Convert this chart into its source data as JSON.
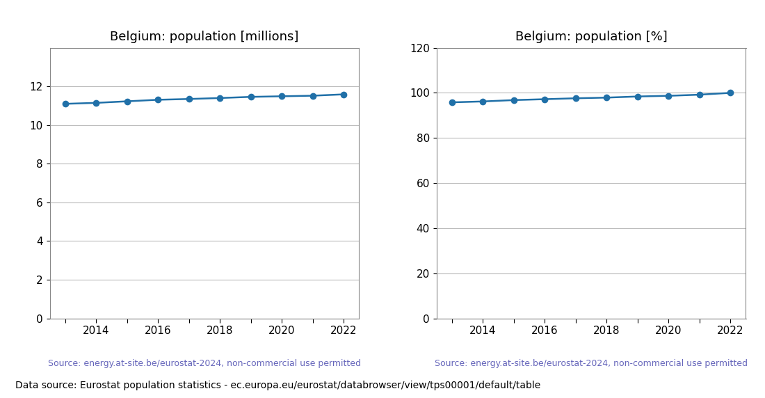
{
  "years": [
    2013,
    2014,
    2015,
    2016,
    2017,
    2018,
    2019,
    2020,
    2021,
    2022
  ],
  "population_millions": [
    11.1,
    11.15,
    11.23,
    11.31,
    11.35,
    11.4,
    11.46,
    11.49,
    11.52,
    11.59
  ],
  "population_pct": [
    95.8,
    96.2,
    96.8,
    97.2,
    97.6,
    97.9,
    98.4,
    98.7,
    99.2,
    100.0
  ],
  "title_millions": "Belgium: population [millions]",
  "title_pct": "Belgium: population [%]",
  "ylim_millions": [
    0,
    14
  ],
  "ylim_pct": [
    0,
    120
  ],
  "yticks_millions": [
    0,
    2,
    4,
    6,
    8,
    10,
    12
  ],
  "yticks_pct": [
    0,
    20,
    40,
    60,
    80,
    100,
    120
  ],
  "xticks_all": [
    2013,
    2014,
    2015,
    2016,
    2017,
    2018,
    2019,
    2020,
    2021,
    2022
  ],
  "xtick_labels": [
    "",
    "2014",
    "",
    "2016",
    "",
    "2018",
    "",
    "2020",
    "",
    "2022"
  ],
  "xlim": [
    2012.5,
    2022.5
  ],
  "line_color": "#2070a8",
  "marker": "o",
  "markersize": 6,
  "linewidth": 1.8,
  "source_text": "Source: energy.at-site.be/eurostat-2024, non-commercial use permitted",
  "source_color": "#6666bb",
  "footer_text": "Data source: Eurostat population statistics - ec.europa.eu/eurostat/databrowser/view/tps00001/default/table",
  "footer_color": "#000000",
  "title_fontsize": 13,
  "tick_fontsize": 11,
  "source_fontsize": 9,
  "footer_fontsize": 10,
  "grid_color": "#bbbbbb",
  "grid_linewidth": 0.8,
  "spine_color": "#888888"
}
